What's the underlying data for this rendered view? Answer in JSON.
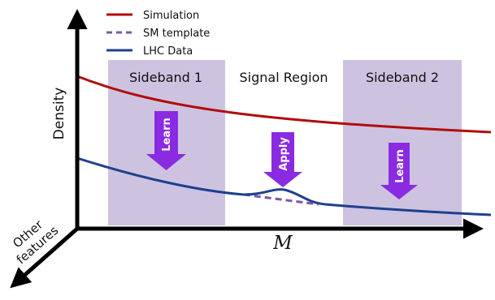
{
  "legend": {
    "items": [
      {
        "label": "Simulation",
        "color": "#b00d0d",
        "style": "solid"
      },
      {
        "label": "SM template",
        "color": "#7c56a8",
        "style": "dashed"
      },
      {
        "label": "LHC Data",
        "color": "#1f3f8f",
        "style": "solid"
      }
    ]
  },
  "regions": {
    "sideband1": "Sideband 1",
    "signal": "Signal Region",
    "sideband2": "Sideband 2"
  },
  "arrows": {
    "learn1": "Learn",
    "apply": "Apply",
    "learn2": "Learn"
  },
  "axes": {
    "y_label": "Density",
    "x_label": "M",
    "z_label_line1": "Other",
    "z_label_line2": "features"
  },
  "colors": {
    "region_fill": "#cdc3e0",
    "arrow_fill": "#8a2be2",
    "axis": "#000000"
  }
}
